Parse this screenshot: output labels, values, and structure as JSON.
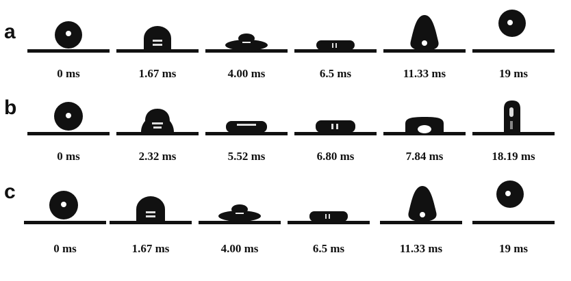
{
  "rows": [
    {
      "label": "a",
      "frames": [
        {
          "time": "0 ms",
          "shape": "sphere"
        },
        {
          "time": "1.67 ms",
          "shape": "dome"
        },
        {
          "time": "4.00 ms",
          "shape": "pancake-peak"
        },
        {
          "time": "6.5 ms",
          "shape": "flat"
        },
        {
          "time": "11.33 ms",
          "shape": "tall-pear"
        },
        {
          "time": "19 ms",
          "shape": "airborne"
        }
      ]
    },
    {
      "label": "b",
      "frames": [
        {
          "time": "0 ms",
          "shape": "sphere"
        },
        {
          "time": "2.32 ms",
          "shape": "dome"
        },
        {
          "time": "5.52 ms",
          "shape": "flat"
        },
        {
          "time": "6.80 ms",
          "shape": "flat"
        },
        {
          "time": "7.84 ms",
          "shape": "arch"
        },
        {
          "time": "18.19 ms",
          "shape": "column"
        }
      ]
    },
    {
      "label": "c",
      "frames": [
        {
          "time": "0 ms",
          "shape": "sphere"
        },
        {
          "time": "1.67 ms",
          "shape": "dome"
        },
        {
          "time": "4.00 ms",
          "shape": "pancake-peak"
        },
        {
          "time": "6.5 ms",
          "shape": "flat"
        },
        {
          "time": "11.33 ms",
          "shape": "tall-pear"
        },
        {
          "time": "19 ms",
          "shape": "airborne"
        }
      ]
    }
  ]
}
